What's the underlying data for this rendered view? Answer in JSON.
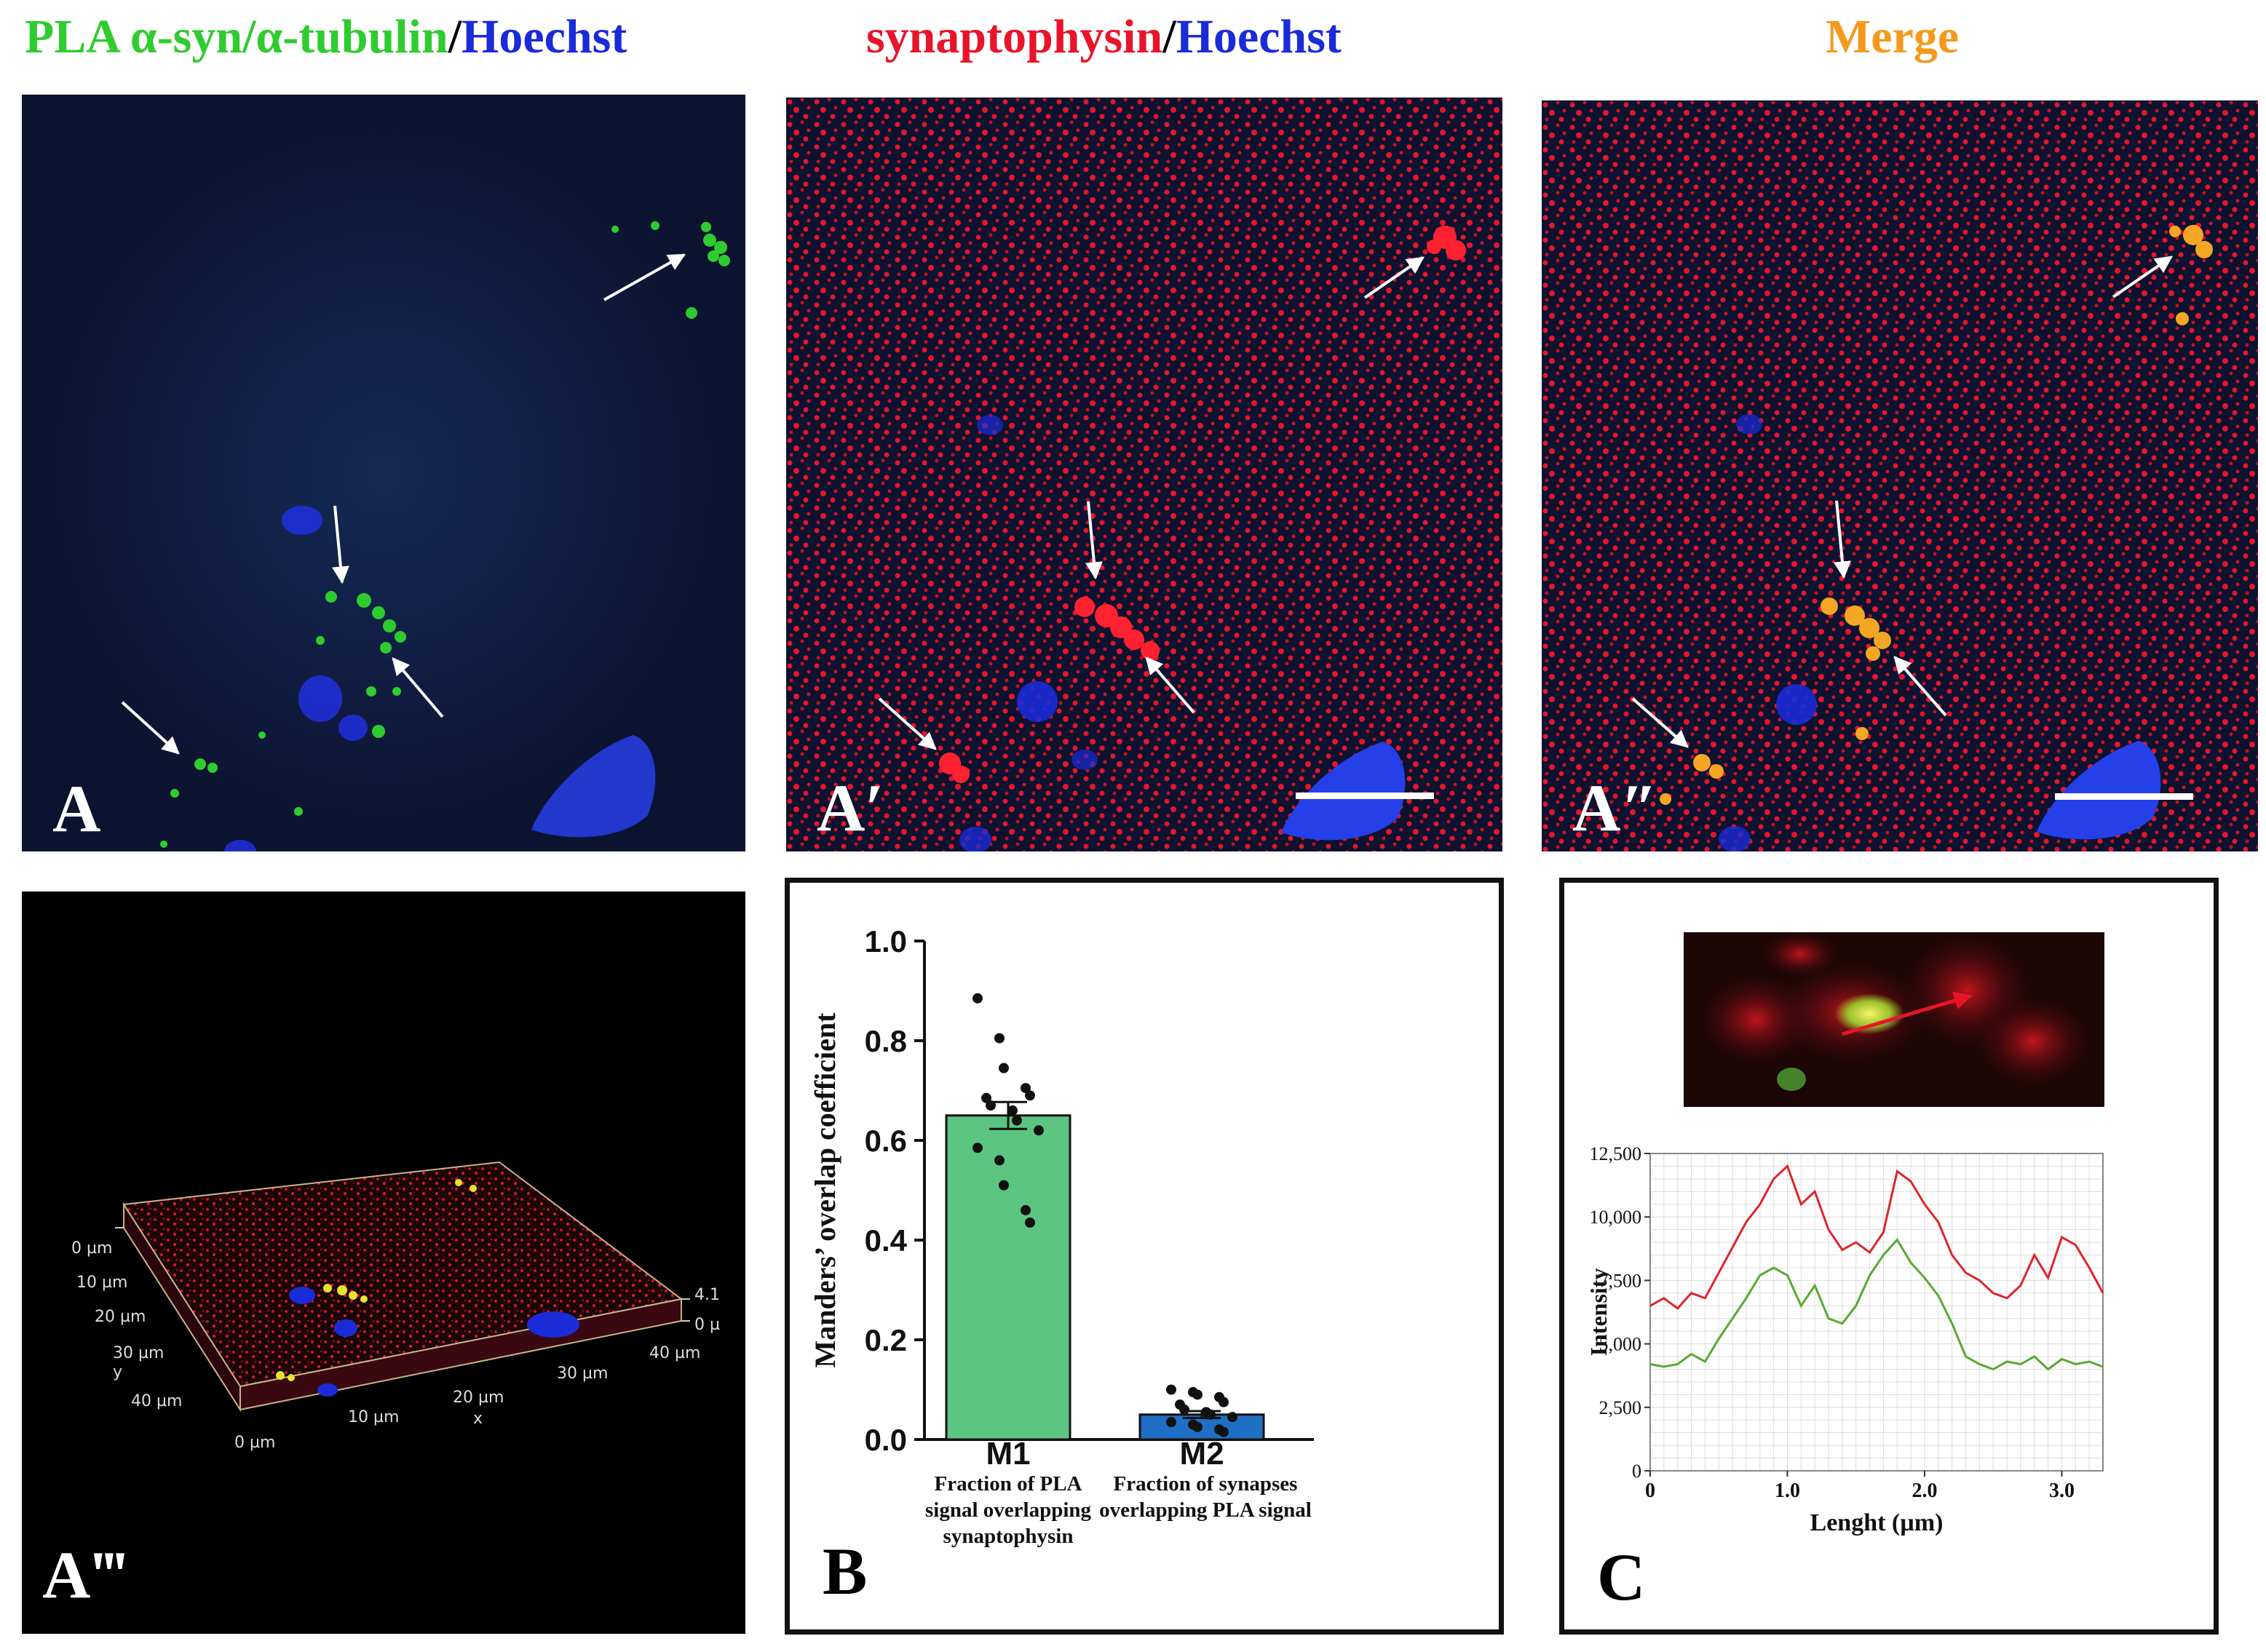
{
  "headers": {
    "panel_a": {
      "part1": "PLA α-syn/α-tubulin",
      "slash": "/",
      "part2": "Hoechst"
    },
    "panel_a_prime": {
      "part1": "synaptophysin",
      "slash": "/",
      "part2": "Hoechst"
    },
    "panel_a_dprime": {
      "part1": "Merge"
    }
  },
  "colors": {
    "green": "#2ecc2e",
    "blue": "#1a2bd8",
    "red": "#e8152a",
    "orange": "#f39a1e",
    "bar_m1": "#5bc581",
    "bar_m2": "#1f6fc4",
    "line_red": "#e0242b",
    "line_green": "#5aa832"
  },
  "panel_labels": {
    "a": "A",
    "a_prime": "A′",
    "a_dprime": "A″",
    "a_tprime": "A‴",
    "b": "B",
    "c": "C"
  },
  "panel_a3d": {
    "y_ticks": [
      "0 µm",
      "10 µm",
      "20 µm",
      "30 µm",
      "40 µm"
    ],
    "y_axis": "y",
    "x_ticks": [
      "0 µm",
      "10 µm",
      "20 µm",
      "30 µm",
      "40 µm"
    ],
    "x_axis": "x",
    "z_ticks": [
      "4.1",
      "0 µ"
    ]
  },
  "chart_data": [
    {
      "type": "bar",
      "panel": "B",
      "categories": [
        "M1",
        "M2"
      ],
      "category_captions": [
        [
          "Fraction of PLA",
          "signal overlapping",
          "synaptophysin"
        ],
        [
          "Fraction of synapses",
          "overlapping PLA signal"
        ]
      ],
      "values": [
        0.65,
        0.05
      ],
      "sem": [
        0.027,
        0.007
      ],
      "points": [
        [
          0.885,
          0.805,
          0.745,
          0.705,
          0.69,
          0.685,
          0.67,
          0.66,
          0.64,
          0.62,
          0.585,
          0.56,
          0.51,
          0.46,
          0.435
        ],
        [
          0.1,
          0.095,
          0.09,
          0.085,
          0.075,
          0.07,
          0.06,
          0.055,
          0.05,
          0.045,
          0.035,
          0.03,
          0.025,
          0.02,
          0.015
        ]
      ],
      "ylabel": "Manders’ overlap coefficient",
      "xlabel": "",
      "ylim": [
        0,
        1.0
      ],
      "yticks": [
        "0.0",
        "0.2",
        "0.4",
        "0.6",
        "0.8",
        "1.0"
      ],
      "grid": false
    },
    {
      "type": "line",
      "panel": "C",
      "xlabel": "Lenght (µm)",
      "ylabel": "Intensity",
      "xlim": [
        0,
        3.3
      ],
      "ylim": [
        0,
        12500
      ],
      "xticks": [
        "0",
        "1.0",
        "2.0",
        "3.0"
      ],
      "yticks": [
        "0",
        "2,500",
        "5,000",
        "7,500",
        "10,000",
        "12,500"
      ],
      "grid": true,
      "x": [
        0,
        0.1,
        0.2,
        0.3,
        0.4,
        0.5,
        0.6,
        0.7,
        0.8,
        0.9,
        1.0,
        1.1,
        1.2,
        1.3,
        1.4,
        1.5,
        1.6,
        1.7,
        1.8,
        1.9,
        2.0,
        2.1,
        2.2,
        2.3,
        2.4,
        2.5,
        2.6,
        2.7,
        2.8,
        2.9,
        3.0,
        3.1,
        3.2,
        3.3
      ],
      "series": [
        {
          "color": "red",
          "values": [
            6500,
            6800,
            6400,
            7000,
            6800,
            7800,
            8800,
            9800,
            10500,
            11500,
            12000,
            10500,
            11000,
            9500,
            8700,
            9000,
            8600,
            9400,
            11800,
            11400,
            10500,
            9800,
            8500,
            7800,
            7500,
            7000,
            6800,
            7300,
            8500,
            7600,
            9200,
            8900,
            8000,
            7000
          ]
        },
        {
          "color": "green",
          "values": [
            4200,
            4100,
            4200,
            4600,
            4300,
            5200,
            6000,
            6800,
            7700,
            8000,
            7700,
            6500,
            7300,
            6000,
            5800,
            6500,
            7700,
            8500,
            9100,
            8200,
            7600,
            6900,
            5800,
            4500,
            4200,
            4000,
            4300,
            4200,
            4500,
            4000,
            4400,
            4200,
            4300,
            4100
          ]
        }
      ]
    }
  ]
}
